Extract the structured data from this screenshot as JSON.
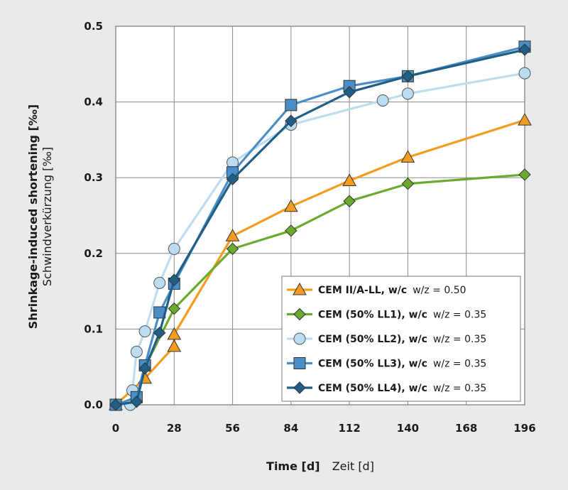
{
  "chart_data": {
    "type": "line",
    "xlabel": "Time [d]",
    "xlabel_secondary": "Zeit [d]",
    "ylabel": "Shrinkage-induced shortening [‰]",
    "ylabel_secondary": "Schwindverkürzung [‰]",
    "xlim": [
      0,
      196
    ],
    "ylim": [
      0,
      0.5
    ],
    "x_ticks": [
      "0",
      "28",
      "56",
      "84",
      "112",
      "140",
      "168",
      "196"
    ],
    "y_ticks": [
      "0.0",
      "0.1",
      "0.2",
      "0.3",
      "0.4",
      "0.5"
    ],
    "grid": true,
    "legend_position": "bottom-right",
    "series": [
      {
        "name": "CEM II/A-LL, w/c",
        "name_secondary": "w/z = 0.50",
        "color": "#f39c1f",
        "marker": "triangle",
        "x": [
          0,
          14,
          28,
          28,
          56,
          84,
          112,
          140,
          196
        ],
        "y": [
          0.0,
          0.035,
          0.077,
          0.093,
          0.223,
          0.262,
          0.296,
          0.327,
          0.376
        ]
      },
      {
        "name": "CEM (50% LL1), w/c",
        "name_secondary": "w/z = 0.35",
        "color": "#6aab2f",
        "marker": "diamond",
        "x": [
          0,
          10,
          14,
          28,
          56,
          84,
          112,
          140,
          196
        ],
        "y": [
          0.0,
          0.005,
          0.05,
          0.127,
          0.206,
          0.23,
          0.269,
          0.292,
          0.304
        ]
      },
      {
        "name": "CEM (50% LL2), w/c",
        "name_secondary": "w/z = 0.35",
        "color": "#bcdcf0",
        "marker": "circle",
        "x": [
          0,
          7,
          8,
          10,
          14,
          21,
          28,
          56,
          84,
          128,
          140,
          196
        ],
        "y": [
          0.0,
          0.0,
          0.019,
          0.07,
          0.097,
          0.161,
          0.206,
          0.32,
          0.37,
          0.402,
          0.411,
          0.438
        ]
      },
      {
        "name": "CEM (50% LL3), w/c",
        "name_secondary": "w/z = 0.35",
        "color": "#4a8ec7",
        "marker": "square",
        "x": [
          0,
          10,
          14,
          21,
          28,
          56,
          84,
          112,
          140,
          196
        ],
        "y": [
          0.0,
          0.01,
          0.052,
          0.122,
          0.16,
          0.307,
          0.396,
          0.421,
          0.434,
          0.473
        ]
      },
      {
        "name": "CEM (50% LL4), w/c",
        "name_secondary": "w/z = 0.35",
        "color": "#1f5f86",
        "marker": "diamond",
        "x": [
          0,
          10,
          14,
          21,
          28,
          56,
          84,
          112,
          140,
          196
        ],
        "y": [
          0.0,
          0.004,
          0.048,
          0.095,
          0.165,
          0.298,
          0.375,
          0.413,
          0.434,
          0.469
        ]
      }
    ]
  }
}
